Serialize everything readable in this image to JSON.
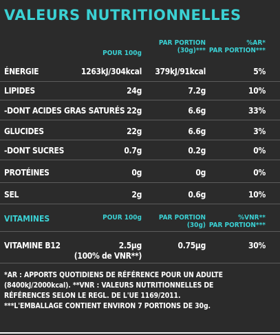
{
  "title": "VALEURS NUTRITIONNELLES",
  "headers": {
    "per100": "POUR 100g",
    "perPortion1": "PAR PORTION",
    "perPortion2": "(30g)***",
    "ar1": "%AR*",
    "ar2": "PAR PORTION***"
  },
  "rows": [
    {
      "label": "ÉNERGIE",
      "v100": "1263kJ/304kcal",
      "vPortion": "379kJ/91kcal",
      "pct": "5%"
    },
    {
      "label": "LIPIDES",
      "v100": "24g",
      "vPortion": "7.2g",
      "pct": "10%"
    },
    {
      "label": "-DONT ACIDES GRAS SATURÉS",
      "v100": "22g",
      "vPortion": "6.6g",
      "pct": "33%"
    },
    {
      "label": "GLUCIDES",
      "v100": "22g",
      "vPortion": "6.6g",
      "pct": "3%"
    },
    {
      "label": "-DONT SUCRES",
      "v100": "0.7g",
      "vPortion": "0.2g",
      "pct": "0%"
    },
    {
      "label": "PROTÉINES",
      "v100": "0g",
      "vPortion": "0g",
      "pct": "0%"
    },
    {
      "label": "SEL",
      "v100": "2g",
      "vPortion": "0.6g",
      "pct": "10%"
    }
  ],
  "vitamins": {
    "label": "VITAMINES",
    "per100": "POUR 100g",
    "perPortion1": "PAR PORTION",
    "perPortion2": "(30g)",
    "vnr1": "%VNR**",
    "vnr2": "PAR PORTION***",
    "row": {
      "label": "VITAMINE B12",
      "v100": "2.5µg",
      "v100b": "(100% de VNR**)",
      "vPortion": "0.75µg",
      "pct": "30%"
    }
  },
  "footnotes": [
    "*AR : APPORTS QUOTIDIENS DE RÉFÉRENCE POUR UN ADULTE",
    "(8400kJ/2000kcal). **VNR : VALEURS NUTRITIONNELLES DE",
    "RÉFÉRENCES SELON LE REGL. DE L'UE 1169/2011.",
    "***L'EMBALLAGE CONTIENT ENVIRON 7 PORTIONS DE 30g."
  ],
  "colors": {
    "accent": "#3bd1d4",
    "background": "#2b2b2b",
    "text": "#ffffff"
  }
}
